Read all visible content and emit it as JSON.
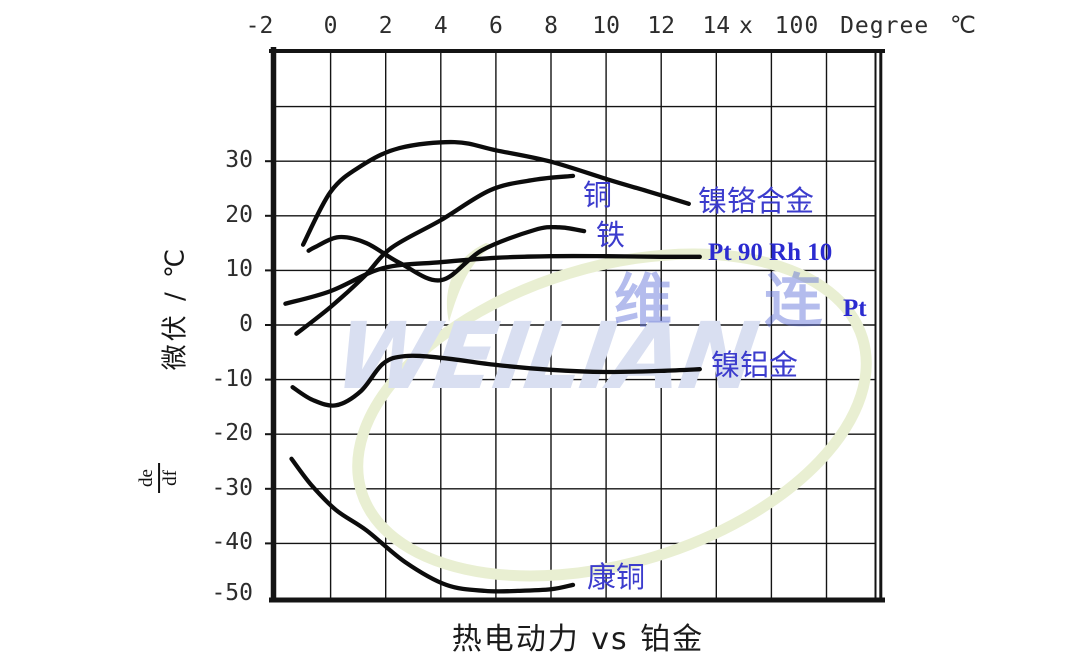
{
  "watermark": {
    "brand_latin": "WEILIAN",
    "brand_cjk": "维 连"
  },
  "chart_data": {
    "type": "line",
    "title": "热电动力 vs 铂金",
    "x_axis": {
      "suffix": "x 100 Degree ℃",
      "ticks": [
        -2,
        0,
        2,
        4,
        6,
        8,
        10,
        12,
        14
      ],
      "min": -2,
      "max": 20,
      "grid_step_units": 2
    },
    "y_axis": {
      "label": "微伏 / ℃",
      "derivative": {
        "numerator": "de",
        "denominator": "df"
      },
      "ticks": [
        30,
        20,
        10,
        0,
        -10,
        -20,
        -30,
        -40,
        -50
      ],
      "min": -50,
      "max": 50,
      "grid_step_units": 10
    },
    "grid": true,
    "legend_position": "inline-labels",
    "reference_label": "Pt",
    "series": [
      {
        "name": "铜",
        "key": "copper",
        "points": [
          [
            -1.24,
            -1.6
          ],
          [
            0,
            3.3
          ],
          [
            1.2,
            8.8
          ],
          [
            2.2,
            14.1
          ],
          [
            4,
            19.2
          ],
          [
            5.8,
            24.7
          ],
          [
            7.4,
            26.6
          ],
          [
            8.8,
            27.3
          ]
        ]
      },
      {
        "name": "镍铬合金",
        "key": "nichrome",
        "points": [
          [
            -1.0,
            14.7
          ],
          [
            0,
            24.4
          ],
          [
            1.1,
            29.1
          ],
          [
            2.5,
            32.4
          ],
          [
            4.5,
            33.5
          ],
          [
            6,
            32.0
          ],
          [
            8,
            29.9
          ],
          [
            10.1,
            26.6
          ],
          [
            11.5,
            24.5
          ],
          [
            13,
            22.2
          ]
        ]
      },
      {
        "name": "铁",
        "key": "iron",
        "points": [
          [
            -0.8,
            13.6
          ],
          [
            -0.55,
            14.3
          ],
          [
            0.3,
            16.1
          ],
          [
            1.3,
            15.0
          ],
          [
            2.5,
            11.4
          ],
          [
            4,
            8.2
          ],
          [
            5.5,
            13.7
          ],
          [
            7.4,
            17.4
          ],
          [
            8.3,
            17.9
          ],
          [
            9.2,
            17.2
          ]
        ]
      },
      {
        "name": "Pt 90 Rh 10",
        "key": "pt90rh10",
        "points": [
          [
            -1.64,
            3.9
          ],
          [
            0,
            6.2
          ],
          [
            1.9,
            10.4
          ],
          [
            4,
            11.5
          ],
          [
            6,
            12.3
          ],
          [
            8,
            12.6
          ],
          [
            10,
            12.6
          ],
          [
            12,
            12.5
          ],
          [
            13.4,
            12.5
          ]
        ]
      },
      {
        "name": "镍铝金",
        "key": "alumel",
        "points": [
          [
            -1.38,
            -11.4
          ],
          [
            -0.66,
            -13.7
          ],
          [
            0.2,
            -14.7
          ],
          [
            1.1,
            -12.1
          ],
          [
            1.9,
            -7.1
          ],
          [
            2.7,
            -5.7
          ],
          [
            4,
            -6.0
          ],
          [
            6,
            -7.3
          ],
          [
            8,
            -8.2
          ],
          [
            10,
            -8.6
          ],
          [
            12,
            -8.4
          ],
          [
            13.4,
            -8.1
          ]
        ]
      },
      {
        "name": "康铜",
        "key": "constantan",
        "points": [
          [
            -1.42,
            -24.5
          ],
          [
            -0.7,
            -29.3
          ],
          [
            0.2,
            -33.9
          ],
          [
            1.3,
            -37.6
          ],
          [
            2.7,
            -43.4
          ],
          [
            4.2,
            -47.6
          ],
          [
            5.6,
            -48.7
          ],
          [
            6.8,
            -48.7
          ],
          [
            8,
            -48.4
          ],
          [
            8.8,
            -47.6
          ]
        ]
      }
    ]
  }
}
